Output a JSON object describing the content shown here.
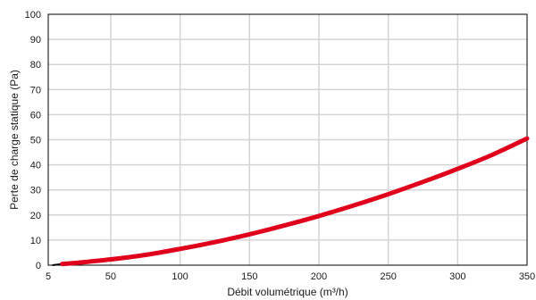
{
  "chart_data": {
    "type": "line",
    "xlabel": "Débit volumétrique (m³/h)",
    "ylabel": "Perte de charge statique (Pa)",
    "xlim": [
      5,
      350
    ],
    "ylim": [
      0,
      100
    ],
    "xticks": [
      5,
      50,
      100,
      150,
      200,
      250,
      300,
      350
    ],
    "yticks": [
      0,
      10,
      20,
      30,
      40,
      50,
      60,
      70,
      80,
      90,
      100
    ],
    "grid": true,
    "series": [
      {
        "color": "#e0001b",
        "x": [
          15,
          25,
          50,
          75,
          100,
          125,
          150,
          175,
          200,
          225,
          250,
          275,
          300,
          325,
          350
        ],
        "y": [
          0.5,
          0.9,
          2.3,
          4.1,
          6.5,
          9.2,
          12.3,
          15.8,
          19.6,
          23.8,
          28.3,
          33.2,
          38.4,
          44.0,
          50.5
        ]
      }
    ]
  }
}
